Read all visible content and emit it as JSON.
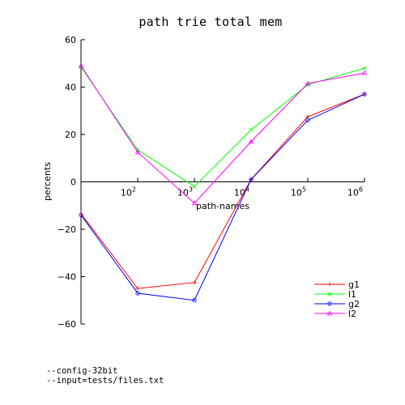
{
  "chart_data": {
    "type": "line",
    "title": "path trie total mem",
    "xlabel": "path-names",
    "ylabel": "percents",
    "x_scale": "log",
    "x": [
      10,
      100,
      1000,
      10000,
      100000,
      1000000
    ],
    "xlim": [
      10,
      1000000
    ],
    "ylim": [
      -60,
      60
    ],
    "x_ticks": [
      {
        "value": 100,
        "base": "10",
        "exp": "2"
      },
      {
        "value": 1000,
        "base": "10",
        "exp": "3"
      },
      {
        "value": 10000,
        "base": "10",
        "exp": "4"
      },
      {
        "value": 100000,
        "base": "10",
        "exp": "5"
      },
      {
        "value": 1000000,
        "base": "10",
        "exp": "6"
      }
    ],
    "y_ticks": [
      60,
      40,
      20,
      0,
      -20,
      -40,
      -60
    ],
    "y_tick_labels": [
      "60",
      "40",
      "20",
      "0",
      "−20",
      "−40",
      "−60"
    ],
    "grid": false,
    "legend_position": "bottom-right",
    "series": [
      {
        "name": "g1",
        "color": "#ff0000",
        "marker": "plus",
        "values": [
          -13.5,
          -45,
          -42.5,
          1,
          27.5,
          37
        ]
      },
      {
        "name": "l1",
        "color": "#00ff00",
        "marker": "cross",
        "values": [
          48.5,
          13.5,
          -2,
          22,
          41,
          48
        ]
      },
      {
        "name": "g2",
        "color": "#0000ff",
        "marker": "circle",
        "values": [
          -14,
          -47,
          -50,
          1,
          26,
          37
        ]
      },
      {
        "name": "l2",
        "color": "#ff00ff",
        "marker": "triangle",
        "values": [
          49,
          12.5,
          -9,
          17,
          41.5,
          46
        ]
      }
    ]
  },
  "notes": [
    "--config-32bit",
    "--input=tests/files.txt"
  ]
}
